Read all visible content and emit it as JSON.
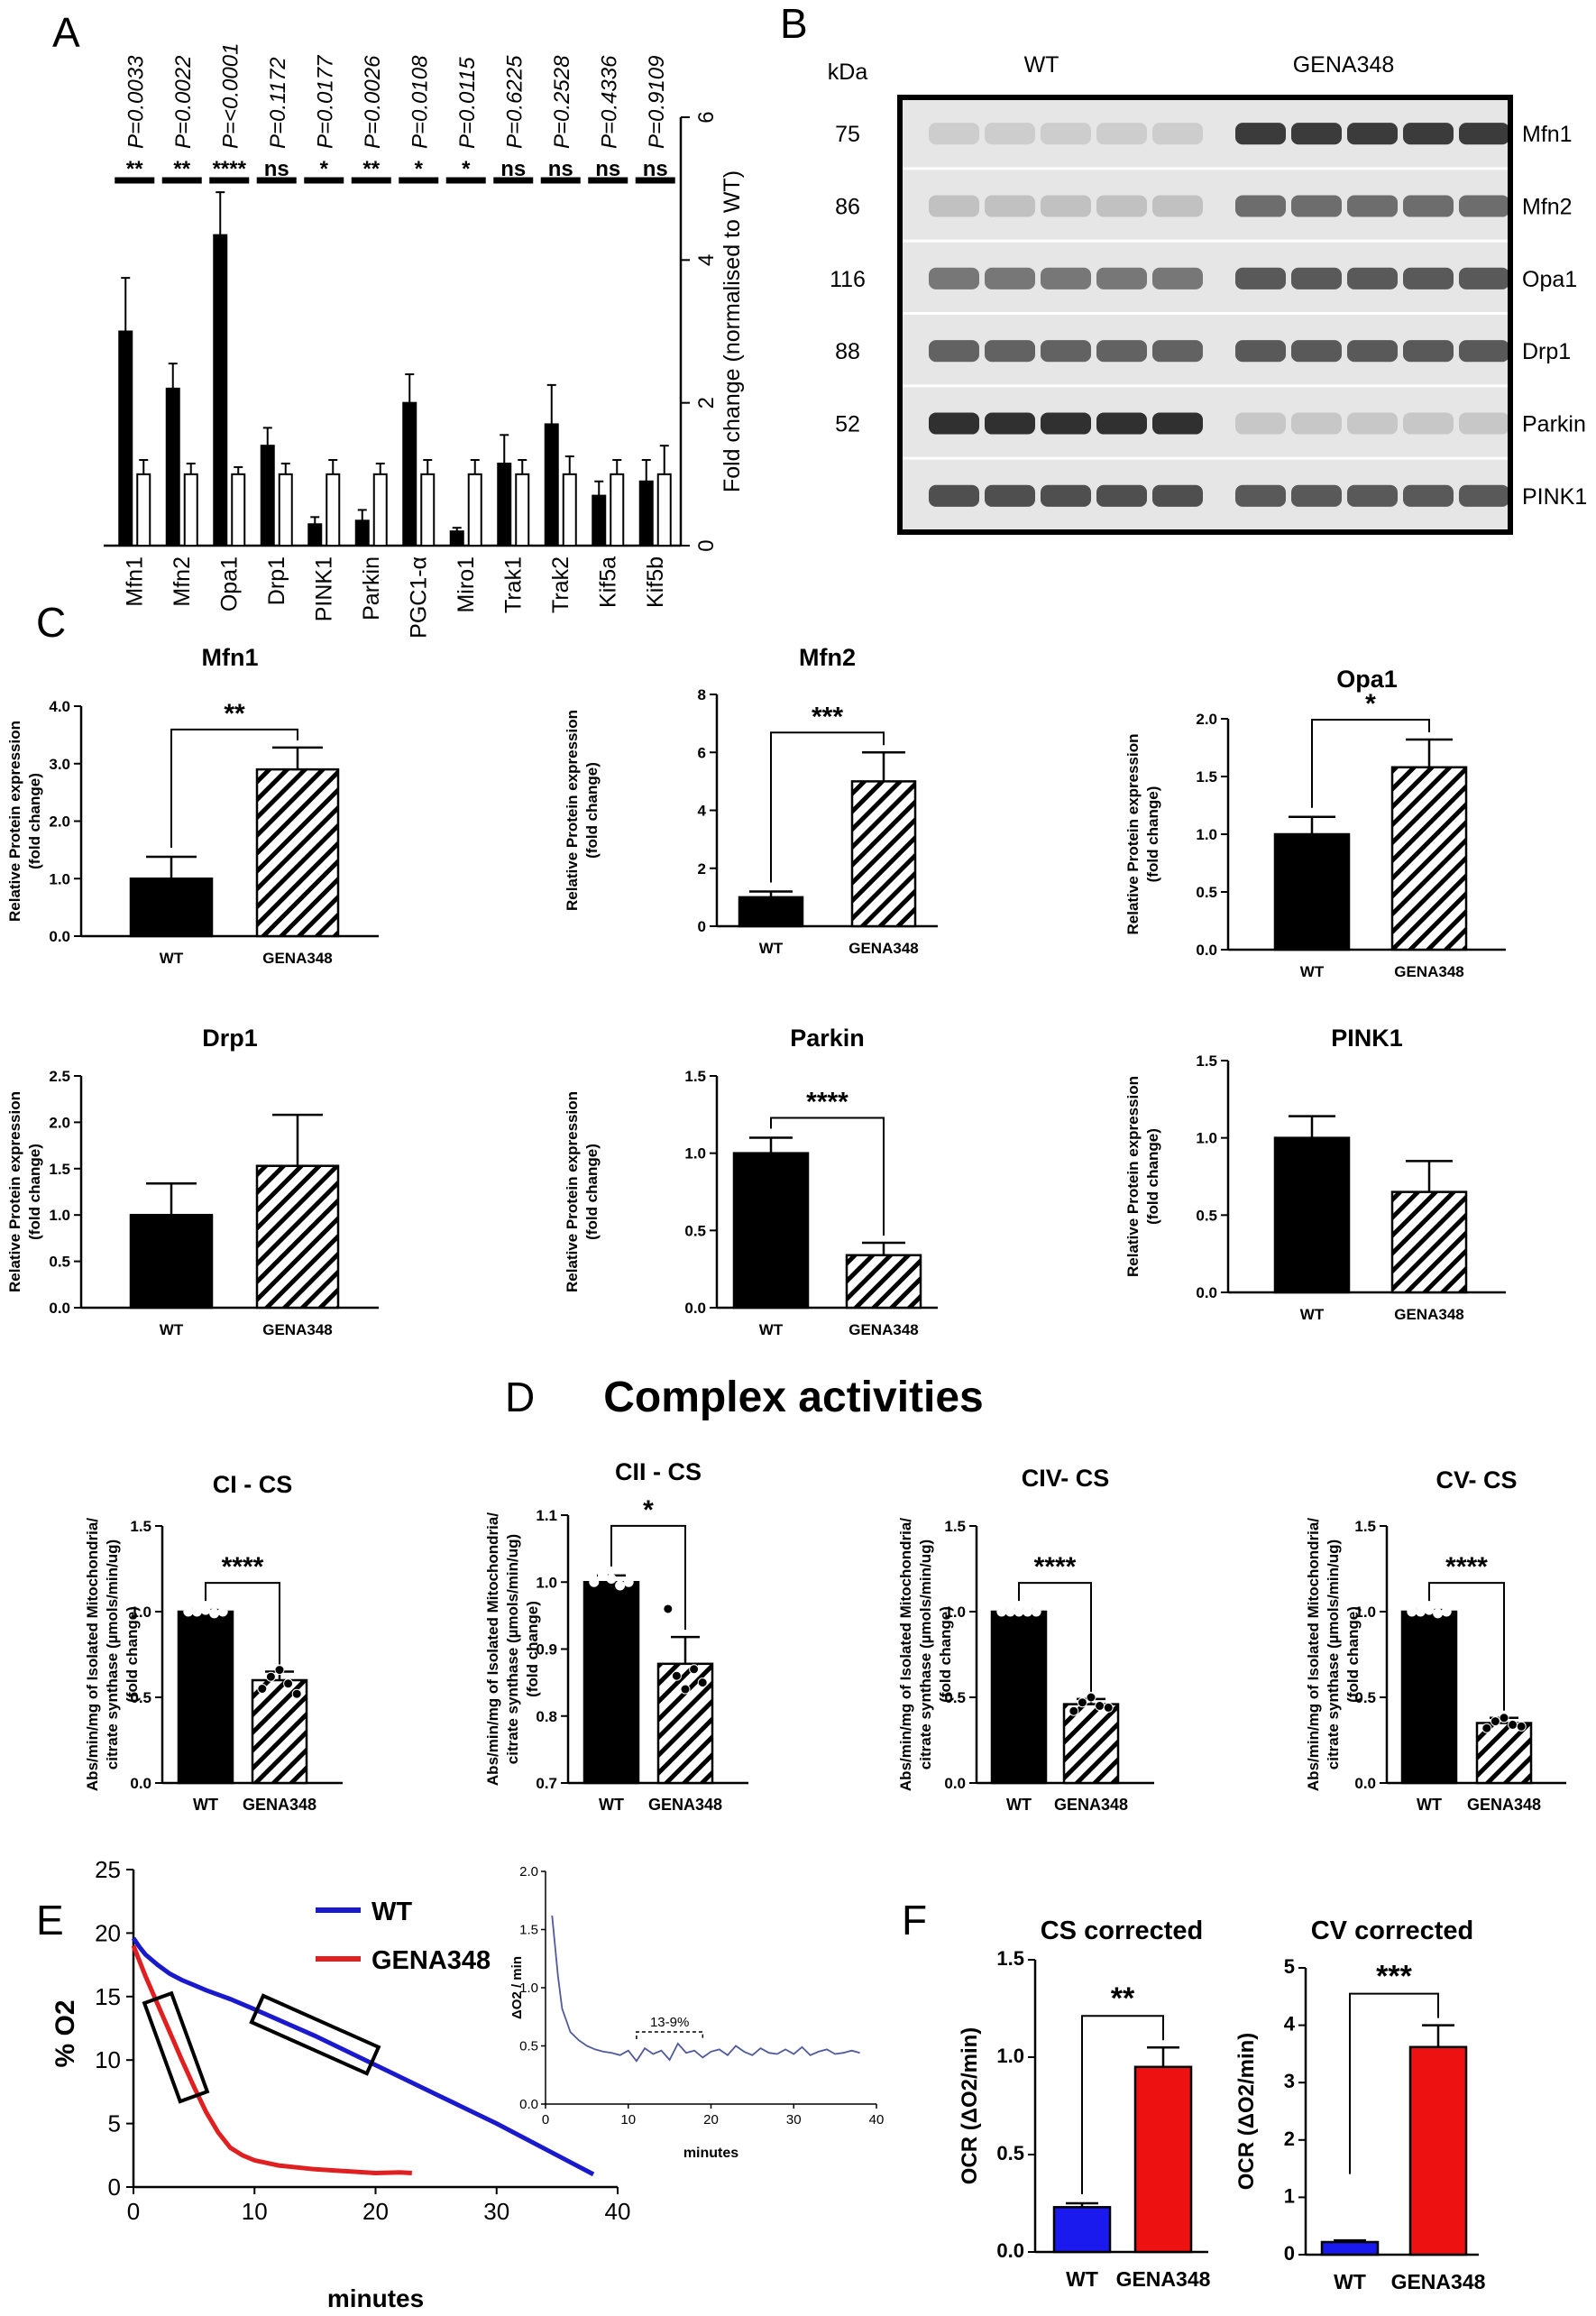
{
  "panel_letters": [
    "A",
    "B",
    "C",
    "D",
    "E",
    "F"
  ],
  "chart_data": [
    {
      "id": "A",
      "type": "bar",
      "categories": [
        "Mfn1",
        "Mfn2",
        "Opa1",
        "Drp1",
        "PINK1",
        "Parkin",
        "PGC1-α",
        "Miro1",
        "Trak1",
        "Trak2",
        "Kif5a",
        "Kif5b"
      ],
      "series": [
        {
          "name": "GENA348",
          "values": [
            3.0,
            2.2,
            4.35,
            1.4,
            0.3,
            0.35,
            2.0,
            0.2,
            1.15,
            1.7,
            0.7,
            0.9
          ],
          "errors": [
            0.75,
            0.35,
            0.6,
            0.25,
            0.1,
            0.15,
            0.4,
            0.05,
            0.4,
            0.55,
            0.2,
            0.3
          ]
        },
        {
          "name": "WT",
          "values": [
            1.0,
            1.0,
            1.0,
            1.0,
            1.0,
            1.0,
            1.0,
            1.0,
            1.0,
            1.0,
            1.0,
            1.0
          ],
          "errors": [
            0.2,
            0.15,
            0.1,
            0.15,
            0.2,
            0.15,
            0.2,
            0.2,
            0.2,
            0.25,
            0.2,
            0.4
          ]
        }
      ],
      "pvalues": [
        "P=0.0033",
        "P=0.0022",
        "P=<0.0001",
        "P=0.1172",
        "P=0.0177",
        "P=0.0026",
        "P=0.0108",
        "P=0.0115",
        "P=0.6225",
        "P=0.2528",
        "P=0.4336",
        "P=0.9109"
      ],
      "significance": [
        "**",
        "**",
        "****",
        "ns",
        "*",
        "**",
        "*",
        "*",
        "ns",
        "ns",
        "ns",
        "ns"
      ],
      "ylabel": "Fold change (normalised to WT)",
      "ylim": [
        0,
        6
      ],
      "yticks": [
        "0",
        "2",
        "4",
        "6"
      ]
    },
    {
      "id": "C1",
      "type": "bar",
      "title": "Mfn1",
      "categories": [
        "WT",
        "GENA348"
      ],
      "values": [
        1.0,
        2.9
      ],
      "errors": [
        0.38,
        0.38
      ],
      "ylabel": "Relative Protein expression (fold change)",
      "ylim": [
        0,
        4
      ],
      "yticks": [
        "0.0",
        "1.0",
        "2.0",
        "3.0",
        "4.0"
      ],
      "significance": "**"
    },
    {
      "id": "C2",
      "type": "bar",
      "title": "Mfn2",
      "categories": [
        "WT",
        "GENA348"
      ],
      "values": [
        1.0,
        5.0
      ],
      "errors": [
        0.2,
        1.0
      ],
      "ylabel": "Relative Protein expression (fold change)",
      "ylim": [
        0,
        8
      ],
      "yticks": [
        "0",
        "2",
        "4",
        "6",
        "8"
      ],
      "significance": "***"
    },
    {
      "id": "C3",
      "type": "bar",
      "title": "Opa1",
      "categories": [
        "WT",
        "GENA348"
      ],
      "values": [
        1.0,
        1.58
      ],
      "errors": [
        0.15,
        0.24
      ],
      "ylabel": "Relative Protein expression (fold change)",
      "ylim": [
        0,
        2
      ],
      "yticks": [
        "0.0",
        "0.5",
        "1.0",
        "1.5",
        "2.0"
      ],
      "significance": "*"
    },
    {
      "id": "C4",
      "type": "bar",
      "title": "Drp1",
      "categories": [
        "WT",
        "GENA348"
      ],
      "values": [
        1.0,
        1.53
      ],
      "errors": [
        0.34,
        0.55
      ],
      "ylabel": "Relative Protein expression (fold change)",
      "ylim": [
        0,
        2.5
      ],
      "yticks": [
        "0.0",
        "0.5",
        "1.0",
        "1.5",
        "2.0",
        "2.5"
      ],
      "significance": ""
    },
    {
      "id": "C5",
      "type": "bar",
      "title": "Parkin",
      "categories": [
        "WT",
        "GENA348"
      ],
      "values": [
        1.0,
        0.34
      ],
      "errors": [
        0.1,
        0.08
      ],
      "ylabel": "Relative Protein expression (fold change)",
      "ylim": [
        0,
        1.5
      ],
      "yticks": [
        "0.0",
        "0.5",
        "1.0",
        "1.5"
      ],
      "significance": "****"
    },
    {
      "id": "C6",
      "type": "bar",
      "title": "PINK1",
      "categories": [
        "WT",
        "GENA348"
      ],
      "values": [
        1.0,
        0.65
      ],
      "errors": [
        0.14,
        0.2
      ],
      "ylabel": "Relative Protein expression (fold change)",
      "ylim": [
        0,
        1.5
      ],
      "yticks": [
        "0.0",
        "0.5",
        "1.0",
        "1.5"
      ],
      "significance": ""
    },
    {
      "id": "D1",
      "type": "bar",
      "title": "CI - CS",
      "categories": [
        "WT",
        "GENA348"
      ],
      "values": [
        1.0,
        0.6
      ],
      "errors": [
        0.01,
        0.05
      ],
      "points": [
        [
          1.0,
          1.0,
          1.01,
          0.99,
          1.0
        ],
        [
          0.55,
          0.62,
          0.66,
          0.58,
          0.52
        ]
      ],
      "ylabel": "Abs/min/mg of Isolated Mitochondria/ citrate synthase (µmols/min/ug) (fold change)",
      "ylim": [
        0,
        1.5
      ],
      "yticks": [
        "0.0",
        "0.5",
        "1.0",
        "1.5"
      ],
      "significance": "****"
    },
    {
      "id": "D2",
      "type": "bar",
      "title": "CII - CS",
      "categories": [
        "WT",
        "GENA348"
      ],
      "values": [
        1.0,
        0.878
      ],
      "errors": [
        0.01,
        0.04
      ],
      "points": [
        [
          1.0,
          1.01,
          1.005,
          0.995,
          1.0
        ],
        [
          0.96,
          0.86,
          0.84,
          0.87,
          0.85
        ]
      ],
      "ylabel": "Abs/min/mg of Isolated Mitochondria/ citrate synthase (µmols/min/ug) (fold change)",
      "ylim": [
        0.7,
        1.1
      ],
      "yticks": [
        "0.7",
        "0.8",
        "0.9",
        "1.0",
        "1.1"
      ],
      "significance": "*"
    },
    {
      "id": "D3",
      "type": "bar",
      "title": "CIV- CS",
      "categories": [
        "WT",
        "GENA348"
      ],
      "values": [
        1.0,
        0.46
      ],
      "errors": [
        0.01,
        0.03
      ],
      "points": [
        [
          1.0,
          1.0,
          1.0,
          1.0,
          1.0
        ],
        [
          0.42,
          0.47,
          0.5,
          0.45,
          0.44
        ]
      ],
      "ylabel": "Abs/min/mg of Isolated Mitochondria/ citrate synthase (µmols/min/ug) (fold change)",
      "ylim": [
        0,
        1.5
      ],
      "yticks": [
        "0.0",
        "0.5",
        "1.0",
        "1.5"
      ],
      "significance": "****"
    },
    {
      "id": "D4",
      "type": "bar",
      "title": "CV- CS",
      "categories": [
        "WT",
        "GENA348"
      ],
      "values": [
        1.0,
        0.35
      ],
      "errors": [
        0.01,
        0.03
      ],
      "points": [
        [
          1.0,
          1.0,
          1.01,
          0.99,
          1.0
        ],
        [
          0.32,
          0.36,
          0.38,
          0.34,
          0.33
        ]
      ],
      "ylabel": "Abs/min/mg of Isolated Mitochondria/ citrate synthase (µmols/min/ug) (fold change)",
      "ylim": [
        0,
        1.5
      ],
      "yticks": [
        "0.0",
        "0.5",
        "1.0",
        "1.5"
      ],
      "significance": "****"
    },
    {
      "id": "E_main",
      "type": "line",
      "series": [
        {
          "name": "WT",
          "color": "#1a1acc",
          "x": [
            0,
            0.5,
            1,
            2,
            3,
            4,
            5,
            6,
            8,
            10,
            15,
            20,
            25,
            30,
            35,
            38
          ],
          "y": [
            19.6,
            18.9,
            18.3,
            17.5,
            16.8,
            16.3,
            15.9,
            15.5,
            14.8,
            14.0,
            11.9,
            9.6,
            7.3,
            5.0,
            2.5,
            1.0
          ]
        },
        {
          "name": "GENA348",
          "color": "#e02020",
          "x": [
            0,
            0.5,
            1,
            2,
            3,
            4,
            5,
            6,
            7,
            8,
            9,
            10,
            12,
            15,
            20,
            22,
            23
          ],
          "y": [
            19.0,
            17.8,
            16.6,
            14.4,
            12.2,
            10.0,
            7.9,
            5.9,
            4.3,
            3.1,
            2.5,
            2.1,
            1.7,
            1.4,
            1.1,
            1.15,
            1.1
          ]
        }
      ],
      "xlabel": "minutes",
      "ylabel": "% O2",
      "xlim": [
        0,
        40
      ],
      "ylim": [
        0,
        25
      ],
      "xticks": [
        "0",
        "10",
        "20",
        "30",
        "40"
      ],
      "yticks": [
        "0",
        "5",
        "10",
        "15",
        "20",
        "25"
      ]
    },
    {
      "id": "E_inset",
      "type": "line",
      "series": [
        {
          "name": "ΔO2",
          "color": "#505a9c",
          "x": [
            0.8,
            1.5,
            2,
            3,
            4,
            5,
            6,
            7,
            8,
            9,
            10,
            11,
            12,
            13,
            14,
            15,
            16,
            17,
            18,
            19,
            20,
            21,
            22,
            23,
            24,
            25,
            26,
            27,
            28,
            29,
            30,
            31,
            32,
            33,
            34,
            35,
            36,
            37,
            38
          ],
          "y": [
            1.62,
            1.1,
            0.82,
            0.62,
            0.55,
            0.5,
            0.47,
            0.45,
            0.44,
            0.42,
            0.46,
            0.37,
            0.48,
            0.43,
            0.46,
            0.38,
            0.52,
            0.44,
            0.46,
            0.4,
            0.45,
            0.47,
            0.42,
            0.5,
            0.45,
            0.42,
            0.48,
            0.44,
            0.43,
            0.47,
            0.43,
            0.49,
            0.42,
            0.45,
            0.47,
            0.43,
            0.44,
            0.46,
            0.44
          ]
        }
      ],
      "annotation": "13-9%",
      "xlabel": "minutes",
      "ylabel": "ΔO2 / min",
      "xlim": [
        0,
        40
      ],
      "ylim": [
        0,
        2
      ],
      "xticks": [
        "0",
        "10",
        "20",
        "30",
        "40"
      ],
      "yticks": [
        "0.0",
        "0.5",
        "1.0",
        "1.5",
        "2.0"
      ]
    },
    {
      "id": "F1",
      "type": "bar",
      "title": "CS corrected",
      "categories": [
        "WT",
        "GENA348"
      ],
      "values": [
        0.23,
        0.95
      ],
      "errors": [
        0.02,
        0.1
      ],
      "colors": [
        "#1a1aee",
        "#ee1111"
      ],
      "ylabel": "OCR (ΔO2/min)",
      "ylim": [
        0,
        1.5
      ],
      "yticks": [
        "0.0",
        "0.5",
        "1.0",
        "1.5"
      ],
      "significance": "**"
    },
    {
      "id": "F2",
      "type": "bar",
      "title": "CV corrected",
      "categories": [
        "WT",
        "GENA348"
      ],
      "values": [
        0.22,
        3.62
      ],
      "errors": [
        0.03,
        0.38
      ],
      "colors": [
        "#1a1aee",
        "#ee1111"
      ],
      "ylabel": "OCR (ΔO2/min)",
      "ylim": [
        0,
        5
      ],
      "yticks": [
        "0",
        "1",
        "2",
        "3",
        "4",
        "5"
      ],
      "significance": "***"
    }
  ],
  "blot": {
    "kda_label": "kDa",
    "groups": [
      "WT",
      "GENA348"
    ],
    "rows": [
      {
        "kda": "75",
        "protein": "Mfn1",
        "wt": 0.12,
        "gena": 0.85
      },
      {
        "kda": "86",
        "protein": "Mfn2",
        "wt": 0.18,
        "gena": 0.6
      },
      {
        "kda": "116",
        "protein": "Opa1",
        "wt": 0.55,
        "gena": 0.7
      },
      {
        "kda": "88",
        "protein": "Drp1",
        "wt": 0.65,
        "gena": 0.7
      },
      {
        "kda": "52",
        "protein": "Parkin",
        "wt": 0.9,
        "gena": 0.15
      },
      {
        "kda": "",
        "protein": "PINK1",
        "wt": 0.75,
        "gena": 0.7
      }
    ]
  },
  "panel_D_title": "Complex activities",
  "legend_E": [
    "WT",
    "GENA348"
  ]
}
